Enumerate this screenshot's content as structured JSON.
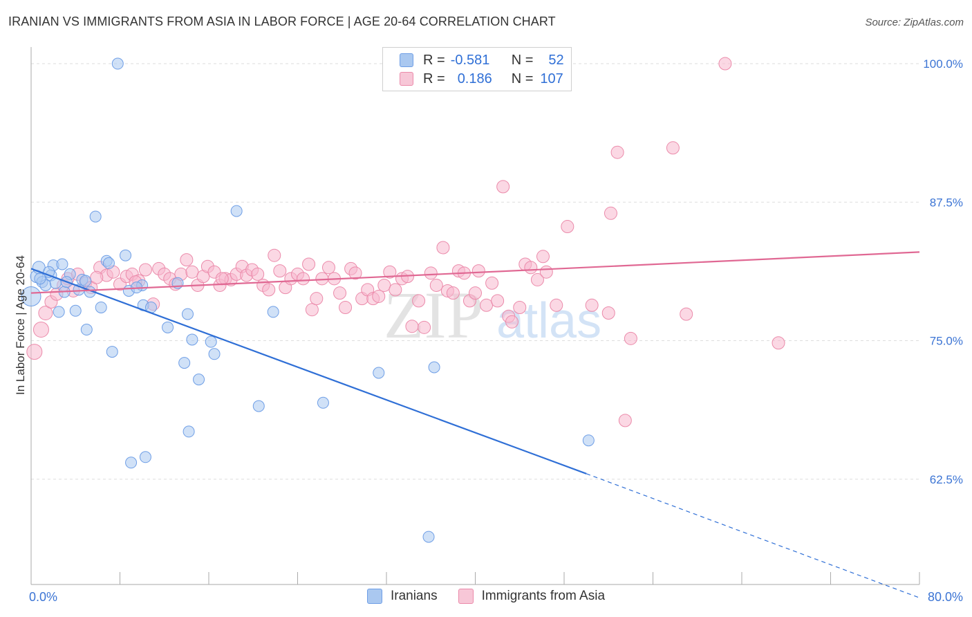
{
  "header": {
    "title": "IRANIAN VS IMMIGRANTS FROM ASIA IN LABOR FORCE | AGE 20-64 CORRELATION CHART",
    "source": "Source: ZipAtlas.com"
  },
  "legend": {
    "rows": [
      {
        "r_label": "R =",
        "r_value": "-0.581",
        "n_label": "N =",
        "n_value": "52",
        "color": "#aac8f0"
      },
      {
        "r_label": "R =",
        "r_value": "0.186",
        "n_label": "N =",
        "n_value": "107",
        "color": "#f7b8cd"
      }
    ]
  },
  "bottom_legend": [
    "Iranians",
    "Immigrants from Asia"
  ],
  "watermark": {
    "zip": "ZIP",
    "atlas": "atlas"
  },
  "chart_data": {
    "type": "scatter",
    "xlabel": "",
    "ylabel": "In Labor Force | Age 20-64",
    "xlim": [
      0,
      80
    ],
    "ylim": [
      53,
      101.5
    ],
    "x_tick_labels": [
      "0.0%",
      "80.0%"
    ],
    "y_ticks": [
      62.5,
      75.0,
      87.5,
      100.0
    ],
    "y_tick_labels": [
      "62.5%",
      "75.0%",
      "87.5%",
      "100.0%"
    ],
    "grid": true,
    "series": [
      {
        "name": "Iranians",
        "color": "#6e9ee6",
        "fill": "#aac8f0",
        "trend": {
          "x0": 0,
          "y0": 81.5,
          "x1": 50,
          "y1": 63.0,
          "dash_to_x": 80,
          "dash_to_y": 51.8,
          "color": "#2f6fd6"
        },
        "points": [
          [
            0.0,
            79.0,
            14
          ],
          [
            0.5,
            80.8,
            9
          ],
          [
            0.7,
            81.6,
            9
          ],
          [
            1.0,
            80.3,
            8
          ],
          [
            1.3,
            80.0,
            8
          ],
          [
            1.8,
            80.9,
            8
          ],
          [
            2.0,
            81.8,
            8
          ],
          [
            2.2,
            80.2,
            8
          ],
          [
            2.5,
            77.6,
            8
          ],
          [
            2.8,
            81.9,
            8
          ],
          [
            3.0,
            79.4,
            8
          ],
          [
            3.5,
            81.0,
            8
          ],
          [
            4.0,
            77.7,
            8
          ],
          [
            4.3,
            79.6,
            8
          ],
          [
            4.6,
            80.5,
            8
          ],
          [
            5.0,
            76.0,
            8
          ],
          [
            5.3,
            79.4,
            8
          ],
          [
            5.8,
            86.2,
            8
          ],
          [
            6.3,
            78.0,
            8
          ],
          [
            6.8,
            82.2,
            8
          ],
          [
            7.0,
            82.0,
            8
          ],
          [
            7.3,
            74.0,
            8
          ],
          [
            7.8,
            100.0,
            8
          ],
          [
            8.5,
            82.7,
            8
          ],
          [
            8.8,
            79.5,
            8
          ],
          [
            9.0,
            64.0,
            8
          ],
          [
            10.0,
            80.0,
            8
          ],
          [
            10.1,
            78.2,
            8
          ],
          [
            10.3,
            64.5,
            8
          ],
          [
            10.8,
            78.0,
            8
          ],
          [
            12.3,
            76.2,
            8
          ],
          [
            13.2,
            80.2,
            8
          ],
          [
            13.8,
            73.0,
            8
          ],
          [
            14.2,
            66.8,
            8
          ],
          [
            14.1,
            77.4,
            8
          ],
          [
            14.5,
            75.1,
            8
          ],
          [
            15.1,
            71.5,
            8
          ],
          [
            16.2,
            74.9,
            8
          ],
          [
            16.5,
            73.8,
            8
          ],
          [
            18.5,
            86.7,
            8
          ],
          [
            20.5,
            69.1,
            8
          ],
          [
            21.8,
            77.6,
            8
          ],
          [
            26.3,
            69.4,
            8
          ],
          [
            31.3,
            72.1,
            8
          ],
          [
            35.8,
            57.3,
            8
          ],
          [
            36.3,
            72.6,
            8
          ],
          [
            50.2,
            66.0,
            8
          ],
          [
            0.8,
            80.6,
            8
          ],
          [
            3.2,
            80.3,
            8
          ],
          [
            4.9,
            80.4,
            8
          ],
          [
            9.5,
            79.8,
            8
          ],
          [
            1.6,
            81.2,
            8
          ]
        ]
      },
      {
        "name": "Immigrants from Asia",
        "color": "#eb8aaa",
        "fill": "#f7b8cd",
        "trend": {
          "x0": 0,
          "y0": 79.3,
          "x1": 80,
          "y1": 83.0,
          "color": "#e06893"
        },
        "points": [
          [
            0.3,
            74.0,
            11
          ],
          [
            0.9,
            76.0,
            11
          ],
          [
            1.3,
            77.5,
            10
          ],
          [
            1.8,
            78.5,
            9
          ],
          [
            2.3,
            79.2,
            9
          ],
          [
            2.9,
            80.0,
            9
          ],
          [
            3.3,
            80.6,
            9
          ],
          [
            3.8,
            79.5,
            9
          ],
          [
            4.2,
            81.0,
            9
          ],
          [
            4.9,
            80.2,
            9
          ],
          [
            5.4,
            79.8,
            9
          ],
          [
            6.2,
            81.6,
            9
          ],
          [
            6.8,
            80.9,
            9
          ],
          [
            7.4,
            81.2,
            9
          ],
          [
            8.0,
            80.1,
            9
          ],
          [
            8.6,
            80.8,
            9
          ],
          [
            9.1,
            81.0,
            9
          ],
          [
            9.7,
            80.4,
            9
          ],
          [
            10.3,
            81.4,
            9
          ],
          [
            11.0,
            78.3,
            9
          ],
          [
            11.5,
            81.5,
            9
          ],
          [
            12.0,
            81.0,
            9
          ],
          [
            12.5,
            80.6,
            9
          ],
          [
            13.0,
            80.1,
            9
          ],
          [
            13.5,
            81.0,
            9
          ],
          [
            14.0,
            82.3,
            9
          ],
          [
            14.5,
            81.2,
            9
          ],
          [
            15.0,
            80.0,
            9
          ],
          [
            15.5,
            80.8,
            9
          ],
          [
            15.9,
            81.7,
            9
          ],
          [
            16.5,
            81.2,
            9
          ],
          [
            17.0,
            80.0,
            9
          ],
          [
            17.5,
            80.6,
            9
          ],
          [
            18.0,
            80.5,
            9
          ],
          [
            18.5,
            81.0,
            9
          ],
          [
            19.0,
            81.7,
            9
          ],
          [
            19.4,
            80.9,
            9
          ],
          [
            19.9,
            81.4,
            9
          ],
          [
            20.4,
            81.0,
            9
          ],
          [
            20.9,
            80.0,
            9
          ],
          [
            21.4,
            79.6,
            9
          ],
          [
            21.9,
            82.7,
            9
          ],
          [
            22.4,
            81.3,
            9
          ],
          [
            22.9,
            79.8,
            9
          ],
          [
            23.4,
            80.6,
            9
          ],
          [
            24.0,
            81.0,
            9
          ],
          [
            24.5,
            80.6,
            9
          ],
          [
            25.0,
            81.9,
            9
          ],
          [
            25.3,
            77.8,
            9
          ],
          [
            25.7,
            78.8,
            9
          ],
          [
            26.2,
            80.6,
            9
          ],
          [
            26.8,
            81.6,
            9
          ],
          [
            27.3,
            80.6,
            9
          ],
          [
            27.8,
            79.3,
            9
          ],
          [
            28.3,
            78.0,
            9
          ],
          [
            28.8,
            81.5,
            9
          ],
          [
            29.2,
            81.1,
            9
          ],
          [
            29.8,
            78.8,
            9
          ],
          [
            30.3,
            79.6,
            9
          ],
          [
            30.8,
            78.8,
            9
          ],
          [
            31.3,
            79.0,
            9
          ],
          [
            31.8,
            80.0,
            9
          ],
          [
            32.3,
            81.2,
            9
          ],
          [
            32.8,
            79.6,
            9
          ],
          [
            33.4,
            80.6,
            9
          ],
          [
            33.9,
            80.8,
            9
          ],
          [
            34.3,
            76.3,
            9
          ],
          [
            34.9,
            78.6,
            9
          ],
          [
            35.4,
            76.2,
            9
          ],
          [
            36.0,
            81.1,
            9
          ],
          [
            36.5,
            80.0,
            9
          ],
          [
            37.1,
            83.4,
            9
          ],
          [
            37.5,
            79.5,
            9
          ],
          [
            38.0,
            79.3,
            9
          ],
          [
            38.5,
            81.3,
            9
          ],
          [
            39.0,
            81.1,
            9
          ],
          [
            39.5,
            78.6,
            9
          ],
          [
            40.0,
            79.3,
            9
          ],
          [
            40.3,
            81.3,
            9
          ],
          [
            41.0,
            78.2,
            9
          ],
          [
            41.5,
            80.2,
            9
          ],
          [
            42.0,
            78.6,
            9
          ],
          [
            42.5,
            88.9,
            9
          ],
          [
            43.0,
            77.2,
            9
          ],
          [
            43.3,
            76.7,
            9
          ],
          [
            44.0,
            78.0,
            9
          ],
          [
            44.5,
            81.9,
            9
          ],
          [
            45.0,
            81.6,
            9
          ],
          [
            45.6,
            80.5,
            9
          ],
          [
            46.1,
            82.6,
            9
          ],
          [
            46.4,
            81.2,
            9
          ],
          [
            47.3,
            78.2,
            9
          ],
          [
            48.0,
            100.0,
            9
          ],
          [
            48.3,
            85.3,
            9
          ],
          [
            50.5,
            78.2,
            9
          ],
          [
            52.0,
            77.5,
            9
          ],
          [
            52.2,
            86.5,
            9
          ],
          [
            52.8,
            92.0,
            9
          ],
          [
            53.5,
            67.8,
            9
          ],
          [
            54.0,
            75.2,
            9
          ],
          [
            57.8,
            92.4,
            9
          ],
          [
            59.0,
            77.4,
            9
          ],
          [
            62.5,
            100.0,
            9
          ],
          [
            67.3,
            74.8,
            9
          ],
          [
            5.9,
            80.7,
            9
          ],
          [
            9.4,
            80.3,
            9
          ],
          [
            17.2,
            80.6,
            9
          ]
        ]
      }
    ]
  }
}
